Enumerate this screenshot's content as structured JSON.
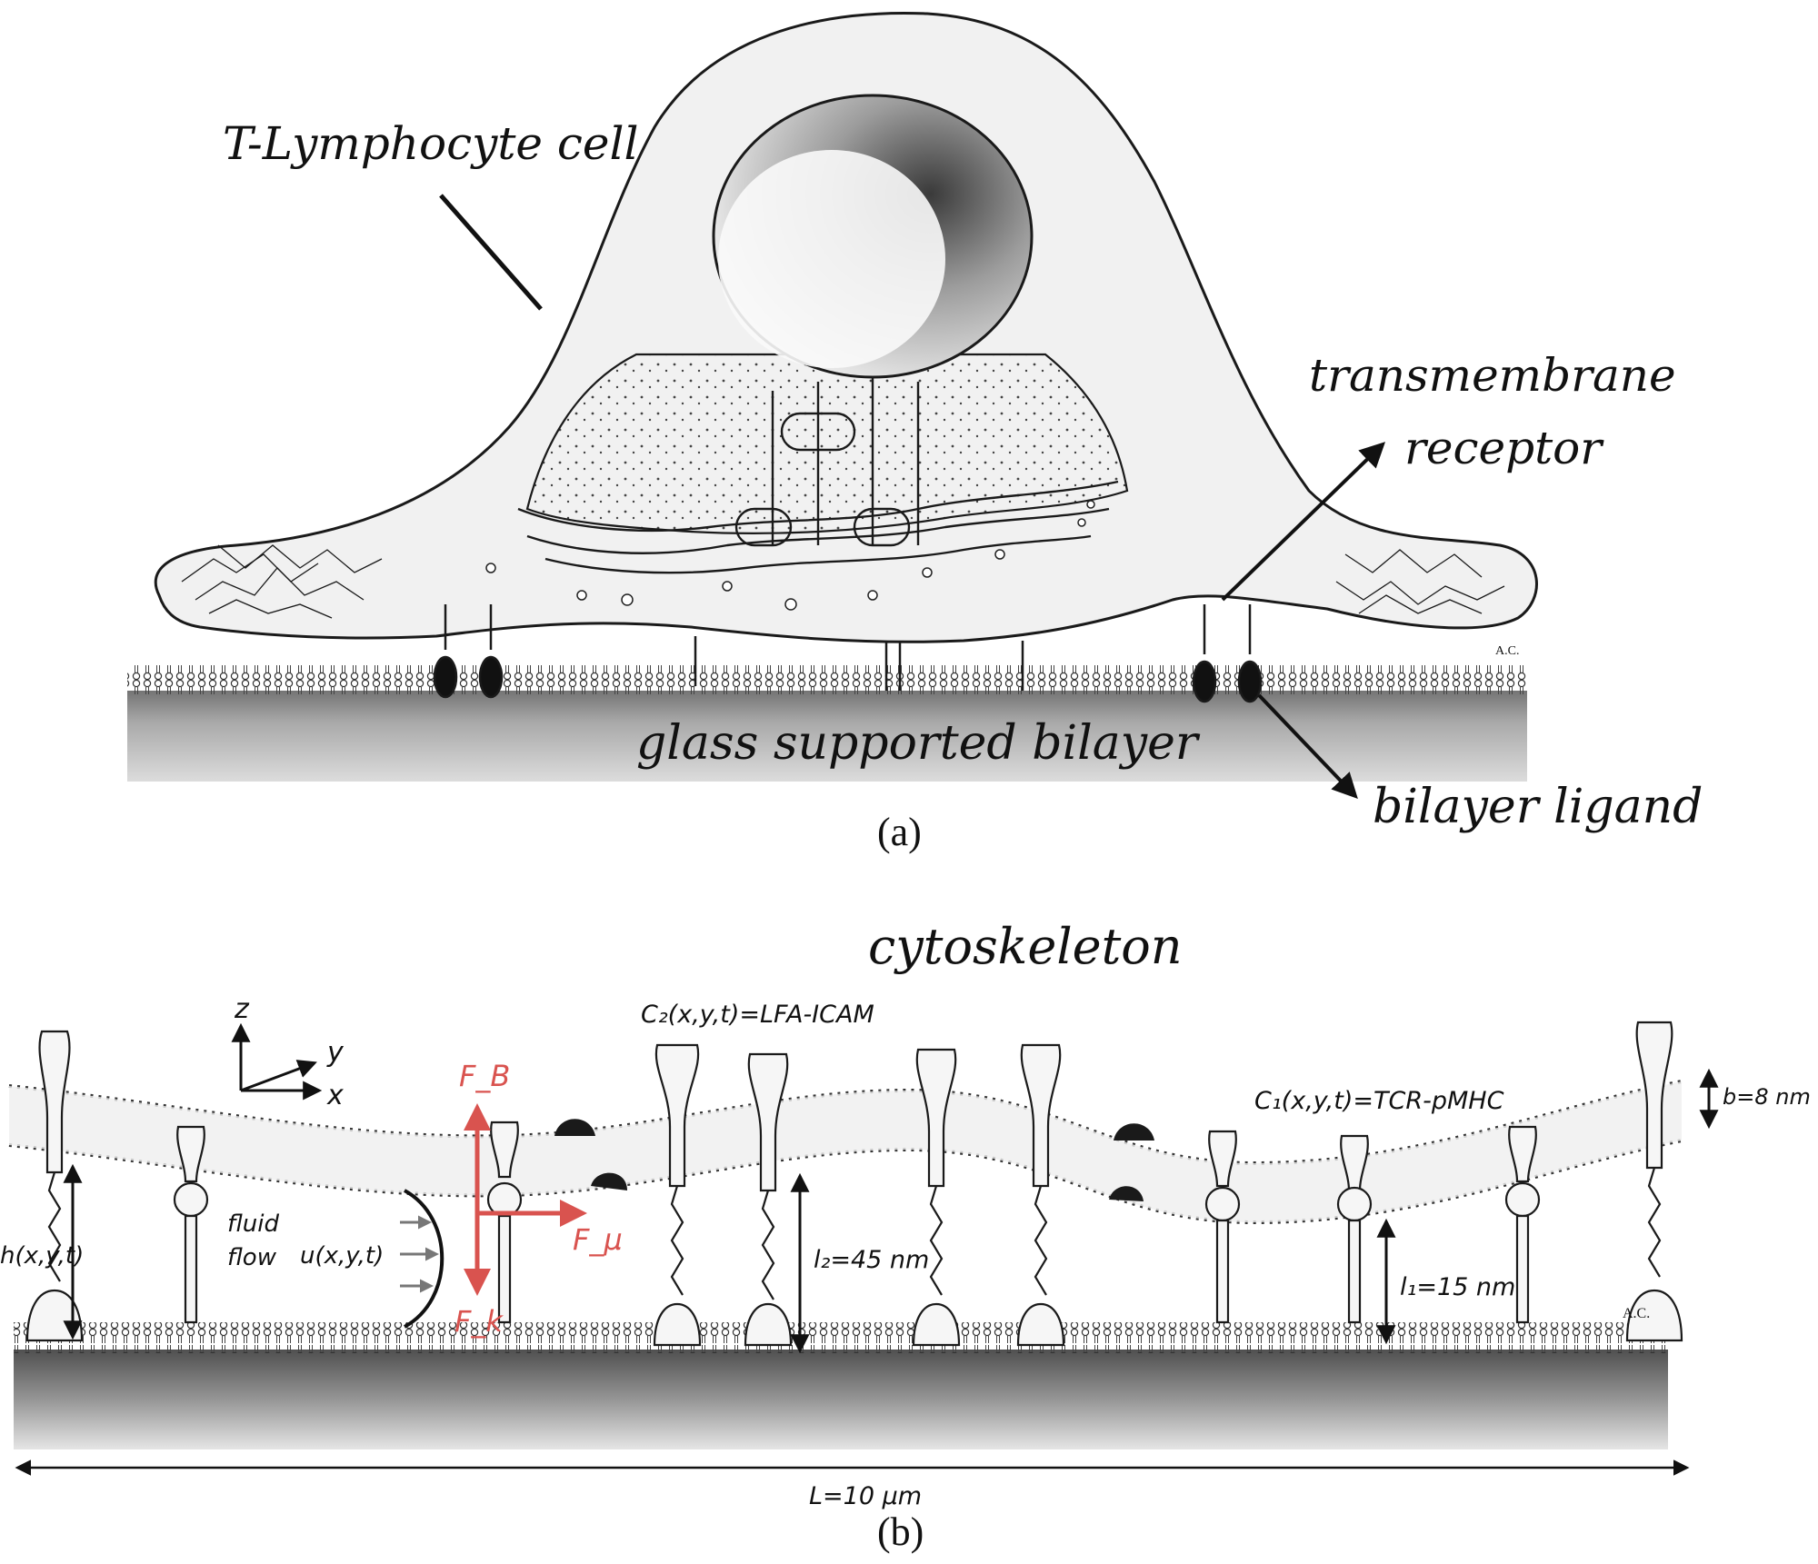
{
  "panel_a": {
    "caption": "(a)",
    "labels": {
      "cell": "T-Lymphocyte cell",
      "receptor_line1": "transmembrane",
      "receptor_line2": "receptor",
      "bilayer": "glass supported bilayer",
      "ligand": "bilayer ligand",
      "signature": "A.C."
    }
  },
  "panel_b": {
    "caption": "(b)",
    "labels": {
      "cytoskeleton": "cytoskeleton",
      "axis_z": "z",
      "axis_y": "y",
      "axis_x": "x",
      "c2": "C₂(x,y,t)=LFA-ICAM",
      "c1": "C₁(x,y,t)=TCR-pMHC",
      "b": "b=8 nm",
      "h": "h(x,y,t)",
      "fluid_line1": "fluid",
      "fluid_line2": "flow",
      "u": "u(x,y,t)",
      "force_b": "F_B",
      "force_mu": "F_μ",
      "force_k": "F_k",
      "l2": "l₂=45 nm",
      "l1": "l₁=15 nm",
      "length": "L=10 μm",
      "signature": "A.C."
    },
    "force_color": "#d9534f"
  }
}
